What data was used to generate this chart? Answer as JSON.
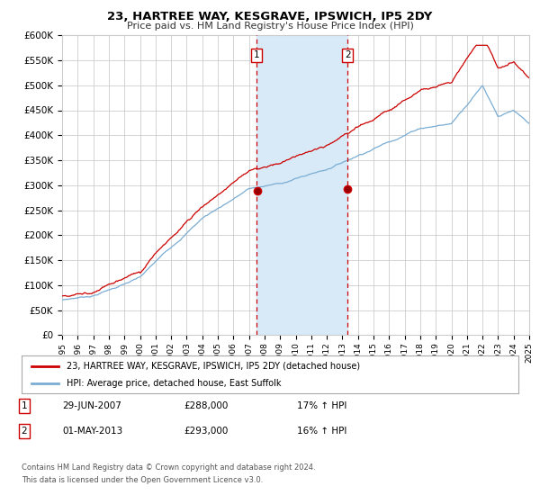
{
  "title": "23, HARTREE WAY, KESGRAVE, IPSWICH, IP5 2DY",
  "subtitle": "Price paid vs. HM Land Registry's House Price Index (HPI)",
  "ylim": [
    0,
    600000
  ],
  "ytick_vals": [
    0,
    50000,
    100000,
    150000,
    200000,
    250000,
    300000,
    350000,
    400000,
    450000,
    500000,
    550000,
    600000
  ],
  "x_start_year": 1995,
  "x_end_year": 2025,
  "sale1_year": 2007.5,
  "sale1_date": "29-JUN-2007",
  "sale1_price": 288000,
  "sale1_hpi_pct": "17%",
  "sale2_year": 2013.33,
  "sale2_date": "01-MAY-2013",
  "sale2_price": 293000,
  "sale2_hpi_pct": "16%",
  "legend_label1": "23, HARTREE WAY, KESGRAVE, IPSWICH, IP5 2DY (detached house)",
  "legend_label2": "HPI: Average price, detached house, East Suffolk",
  "footer1": "Contains HM Land Registry data © Crown copyright and database right 2024.",
  "footer2": "This data is licensed under the Open Government Licence v3.0.",
  "red_color": "#cc0000",
  "blue_color": "#7aadd4",
  "shading_color": "#d8eaf8",
  "bg_color": "#ffffff",
  "grid_color": "#cccccc"
}
